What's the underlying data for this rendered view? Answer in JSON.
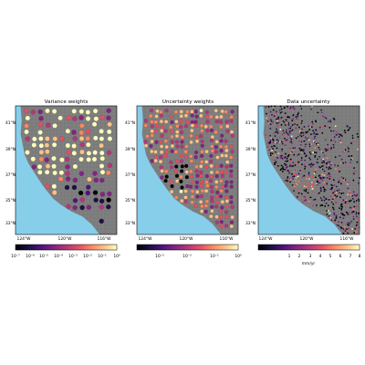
{
  "figure": {
    "panels": [
      {
        "id": "variance",
        "title": "Variance weights",
        "lat_ticks": [
          "41°N",
          "39°N",
          "37°N",
          "35°N",
          "33°N"
        ],
        "lon_ticks": [
          "124°W",
          "120°W",
          "116°W"
        ],
        "colormap": "magma",
        "colorbar": {
          "scale": "log",
          "ticks": [
            "10⁻⁷",
            "10⁻⁶",
            "10⁻⁵",
            "10⁻⁴",
            "10⁻³",
            "10⁻²",
            "10⁻¹",
            "10⁰"
          ],
          "label": ""
        },
        "marker": "large-dots"
      },
      {
        "id": "uncertainty",
        "title": "Uncertainty weights",
        "lat_ticks": [
          "41°N",
          "39°N",
          "37°N",
          "35°N",
          "33°N"
        ],
        "lon_ticks": [
          "124°W",
          "120°W",
          "116°W"
        ],
        "colormap": "magma",
        "colorbar": {
          "scale": "log",
          "ticks": [
            "10⁻⁵",
            "10⁻³",
            "10⁻¹",
            "10⁰"
          ],
          "label": ""
        },
        "marker": "medium-dots"
      },
      {
        "id": "data",
        "title": "Data uncertainty",
        "lat_ticks": [
          "41°N",
          "39°N",
          "37°N",
          "35°N",
          "33°N"
        ],
        "lon_ticks": [
          "124°W",
          "120°W",
          "116°W"
        ],
        "colormap": "magma",
        "colorbar": {
          "scale": "linear",
          "ticks": [
            "1",
            "2",
            "3",
            "4",
            "5",
            "6",
            "7",
            "8"
          ],
          "label": "mm/yr"
        },
        "marker": "small-dots"
      }
    ],
    "colors": {
      "ocean": "#87ceeb",
      "land": "#808080",
      "frame": "#000000"
    }
  }
}
